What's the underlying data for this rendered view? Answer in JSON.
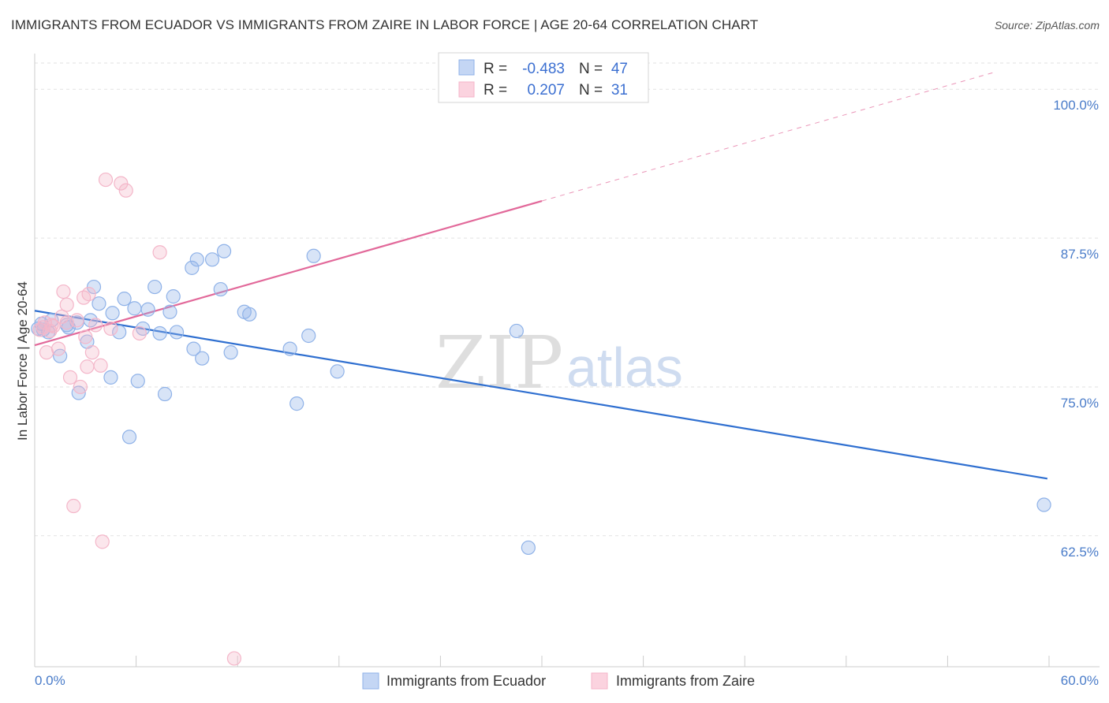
{
  "header": {
    "title": "IMMIGRANTS FROM ECUADOR VS IMMIGRANTS FROM ZAIRE IN LABOR FORCE | AGE 20-64 CORRELATION CHART",
    "source": "Source: ZipAtlas.com"
  },
  "watermark": {
    "zip": "ZIP",
    "atlas": "atlas"
  },
  "chart_data": {
    "type": "scatter",
    "title": "IMMIGRANTS FROM ECUADOR VS IMMIGRANTS FROM ZAIRE IN LABOR FORCE | AGE 20-64 CORRELATION CHART",
    "xlabel": "",
    "ylabel": "In Labor Force | Age 20-64",
    "xlim": [
      0,
      60
    ],
    "ylim": [
      51.5,
      102.2
    ],
    "x_tick_labels": [
      "0.0%",
      "60.0%"
    ],
    "y_ticks": [
      62.5,
      75.0,
      87.5,
      100.0
    ],
    "y_tick_labels": [
      "62.5%",
      "75.0%",
      "87.5%",
      "100.0%"
    ],
    "grid": true,
    "legend": {
      "position": "top-center",
      "rows": [
        {
          "r_label": "R =",
          "r_value": "-0.483",
          "n_label": "N =",
          "n_value": "47"
        },
        {
          "r_label": "R =",
          "r_value": "0.207",
          "n_label": "N =",
          "n_value": "31"
        }
      ]
    },
    "series": [
      {
        "name": "Immigrants from Ecuador",
        "color": "#8fb2e8",
        "line_color": "#2f6fd0",
        "trend": {
          "x0": 0,
          "y0": 81.4,
          "x1": 59.9,
          "y1": 67.3,
          "dashed_from": null
        },
        "points": [
          [
            0.4,
            80.3
          ],
          [
            0.5,
            79.8
          ],
          [
            0.8,
            79.6
          ],
          [
            1.0,
            80.6
          ],
          [
            1.5,
            77.6
          ],
          [
            1.9,
            80.2
          ],
          [
            2.0,
            80.0
          ],
          [
            2.5,
            80.4
          ],
          [
            2.6,
            74.5
          ],
          [
            3.1,
            78.8
          ],
          [
            3.3,
            80.6
          ],
          [
            3.5,
            83.4
          ],
          [
            3.8,
            82.0
          ],
          [
            4.5,
            75.8
          ],
          [
            4.6,
            81.2
          ],
          [
            5.0,
            79.6
          ],
          [
            5.3,
            82.4
          ],
          [
            5.6,
            70.8
          ],
          [
            5.9,
            81.6
          ],
          [
            6.1,
            75.5
          ],
          [
            6.4,
            79.9
          ],
          [
            6.7,
            81.5
          ],
          [
            7.1,
            83.4
          ],
          [
            7.4,
            79.5
          ],
          [
            7.7,
            74.4
          ],
          [
            8.0,
            81.3
          ],
          [
            8.2,
            82.6
          ],
          [
            8.4,
            79.6
          ],
          [
            9.3,
            85.0
          ],
          [
            9.4,
            78.2
          ],
          [
            9.6,
            85.7
          ],
          [
            9.9,
            77.4
          ],
          [
            10.5,
            85.7
          ],
          [
            11.0,
            83.2
          ],
          [
            11.2,
            86.4
          ],
          [
            11.6,
            77.9
          ],
          [
            12.4,
            81.3
          ],
          [
            12.7,
            81.1
          ],
          [
            15.1,
            78.2
          ],
          [
            15.5,
            73.6
          ],
          [
            16.2,
            79.3
          ],
          [
            16.5,
            86.0
          ],
          [
            17.9,
            76.3
          ],
          [
            28.5,
            79.7
          ],
          [
            29.2,
            61.5
          ],
          [
            59.7,
            65.1
          ],
          [
            0.2,
            79.9
          ]
        ]
      },
      {
        "name": "Immigrants from Zaire",
        "color": "#f4b6c9",
        "line_color": "#e2699a",
        "trend": {
          "x0": 0,
          "y0": 78.5,
          "x1": 56.7,
          "y1": 101.4,
          "dashed_from": 30.0
        },
        "points": [
          [
            0.3,
            79.8
          ],
          [
            0.6,
            80.4
          ],
          [
            0.7,
            77.9
          ],
          [
            1.0,
            80.2
          ],
          [
            1.1,
            80.1
          ],
          [
            1.4,
            78.2
          ],
          [
            1.6,
            80.9
          ],
          [
            1.7,
            83.0
          ],
          [
            1.9,
            81.9
          ],
          [
            1.9,
            80.4
          ],
          [
            2.1,
            75.8
          ],
          [
            2.3,
            65.0
          ],
          [
            2.5,
            80.6
          ],
          [
            2.7,
            75.0
          ],
          [
            2.9,
            82.5
          ],
          [
            3.0,
            79.2
          ],
          [
            3.1,
            76.7
          ],
          [
            3.2,
            82.8
          ],
          [
            3.4,
            77.9
          ],
          [
            3.6,
            80.2
          ],
          [
            3.9,
            76.8
          ],
          [
            4.0,
            62.0
          ],
          [
            4.2,
            92.4
          ],
          [
            4.5,
            79.9
          ],
          [
            5.1,
            92.1
          ],
          [
            5.4,
            91.5
          ],
          [
            6.2,
            79.5
          ],
          [
            7.4,
            86.3
          ],
          [
            11.8,
            52.2
          ],
          [
            0.5,
            80.0
          ],
          [
            0.9,
            79.7
          ]
        ]
      }
    ],
    "bottom_legend": [
      "Immigrants from Ecuador",
      "Immigrants from Zaire"
    ]
  }
}
